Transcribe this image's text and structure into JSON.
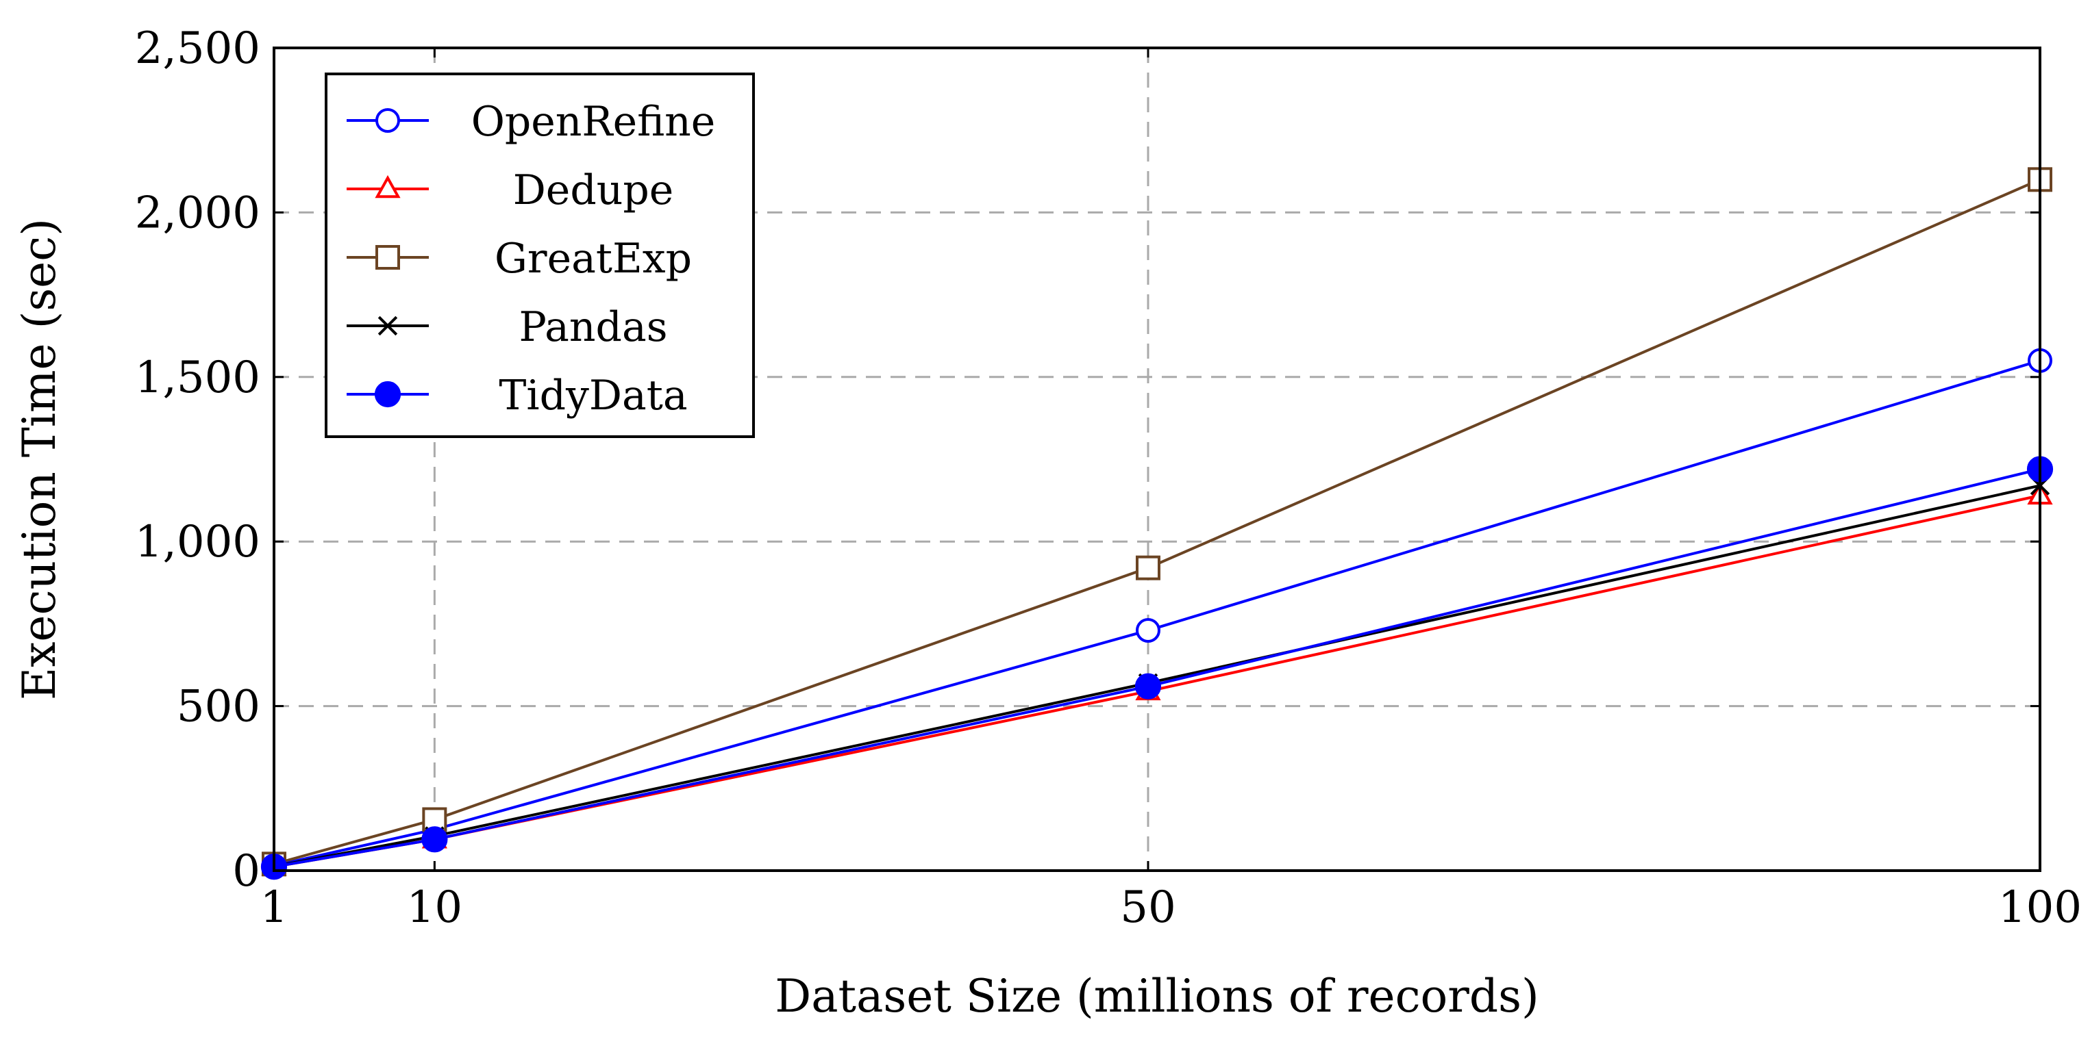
{
  "chart_data": {
    "type": "line",
    "title": "",
    "xlabel": "Dataset Size (millions of records)",
    "ylabel": "Execution Time (sec)",
    "x": [
      1,
      10,
      50,
      100
    ],
    "xlim": [
      1,
      100
    ],
    "ylim": [
      0,
      2500
    ],
    "x_ticks": [
      1,
      10,
      50,
      100
    ],
    "x_tick_labels": [
      "1",
      "10",
      "50",
      "100"
    ],
    "y_ticks": [
      0,
      500,
      1000,
      1500,
      2000,
      2500
    ],
    "y_tick_labels": [
      "0",
      "500",
      "1,000",
      "1,500",
      "2,000",
      "2,500"
    ],
    "grid": true,
    "legend_position": "top-left",
    "series": [
      {
        "name": "OpenRefine",
        "color": "#0000ff",
        "marker": "open-circle",
        "values": [
          15,
          125,
          730,
          1550
        ]
      },
      {
        "name": "Dedupe",
        "color": "#ff0000",
        "marker": "open-triangle",
        "values": [
          12,
          95,
          545,
          1140
        ]
      },
      {
        "name": "GreatExp",
        "color": "#6b4423",
        "marker": "open-square",
        "values": [
          20,
          155,
          920,
          2100
        ]
      },
      {
        "name": "Pandas",
        "color": "#000000",
        "marker": "x-cross",
        "values": [
          13,
          105,
          570,
          1170
        ]
      },
      {
        "name": "TidyData",
        "color": "#0000ff",
        "marker": "filled-circle",
        "values": [
          12,
          95,
          560,
          1220
        ]
      }
    ]
  }
}
